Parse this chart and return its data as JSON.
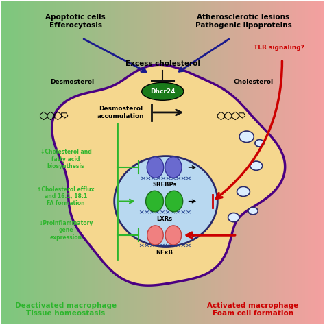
{
  "figsize": [
    4.74,
    4.74
  ],
  "dpi": 100,
  "cell_color": "#f5d78e",
  "cell_border_color": "#4b0082",
  "nucleus_color": "#b8d8f0",
  "nucleus_border_color": "#2a2a6a",
  "excess_chol_text": "Excess cholesterol",
  "dhcr24_text": "Dhcr24",
  "desmosterol_label": "Desmosterol",
  "cholesterol_label": "Cholesterol",
  "desmos_accum_text": "Desmosterol\naccumulation",
  "green_labels": [
    "↓Cholesterol and\nfatty acid\nbiosynthesis",
    "↑Cholesterol efflux\nand 16:1, 18:1\nFA formation",
    "↓Proinflammatory\ngene\nexpression"
  ],
  "srebbp_label": "SREBPs",
  "lxr_label": "LXRs",
  "nfkb_label": "NFκB",
  "bottom_left_text": "Deactivated macrophage\nTissue homeostasis",
  "bottom_right_text": "Activated macrophage\nFoam cell formation",
  "arrow_blue_color": "#1a1a8c",
  "arrow_green_color": "#2db52d",
  "arrow_red_color": "#cc0000",
  "arrow_black_color": "#111111",
  "green_text_color": "#2db52d",
  "red_text_color": "#cc0000",
  "purple_color": "#4b0082",
  "dhcr24_oval_color": "#1a7a1a",
  "lipid_droplet_color": "#ddeeff",
  "srebp_color": "#6a6acf",
  "lxr_color": "#2db52d",
  "nfkb_color": "#f08080",
  "title_left": "Apoptotic cells\nEfferocytosis",
  "title_right": "Atherosclerotic lesions\nPathogenic lipoproteins",
  "tlr_text": "TLR signaling?"
}
